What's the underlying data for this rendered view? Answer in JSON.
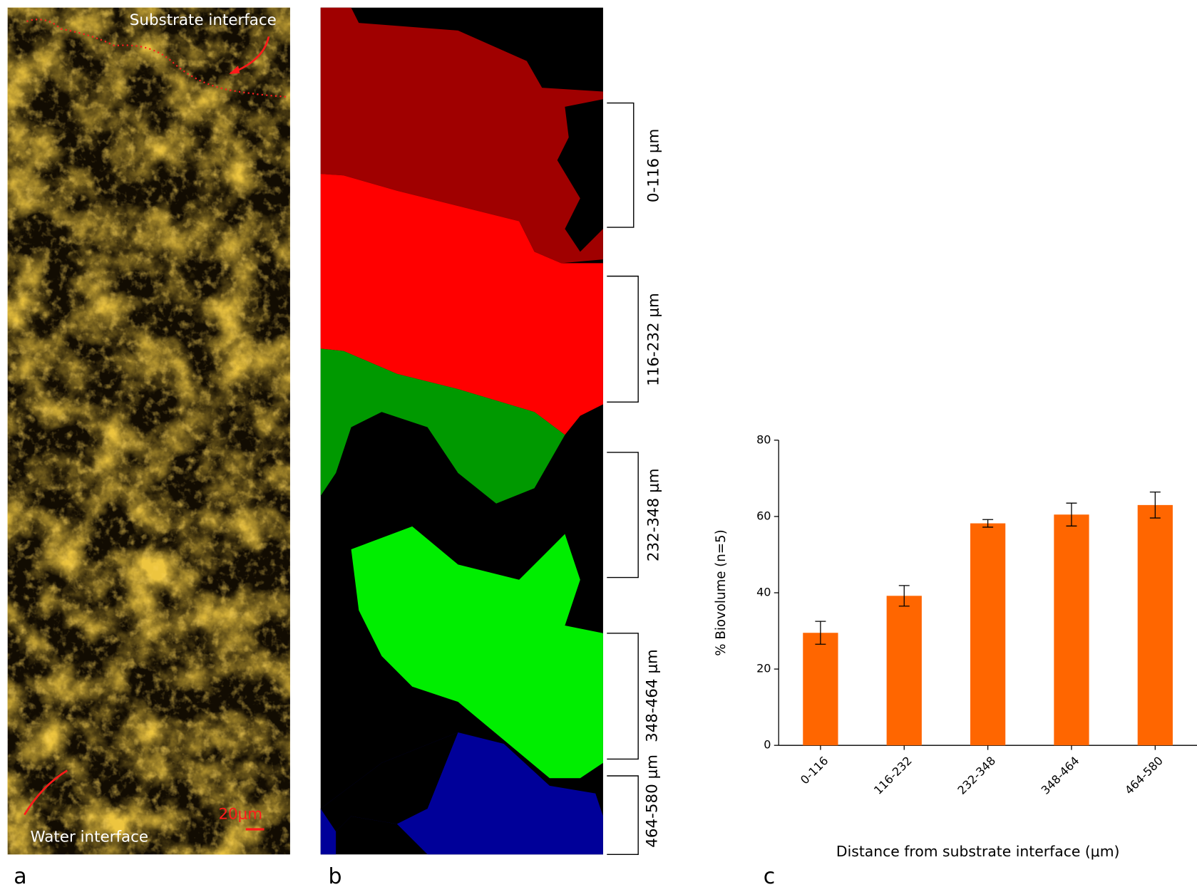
{
  "panel_a": {
    "label": "a",
    "top_annotation": "Substrate interface",
    "bottom_annotation": "Water interface",
    "scale_bar": "20μm"
  },
  "panel_b": {
    "label": "b",
    "bands": [
      "0-116 μm",
      "116-232 μm",
      "232-348 μm",
      "348-464 μm",
      "464-580 μm"
    ]
  },
  "chart_data": {
    "type": "bar",
    "panel_label": "c",
    "x_label": "Distance from substrate interface (μm)",
    "y_label": "% Biovolume (n=5)",
    "categories": [
      "0-116",
      "116-232",
      "232-348",
      "348-464",
      "464-580"
    ],
    "values": [
      29.5,
      39.2,
      58.2,
      60.5,
      63
    ],
    "errors": [
      3,
      2.7,
      1,
      3,
      3.4
    ],
    "color": "#ff6600",
    "ylim": [
      0,
      80
    ],
    "yticks": [
      0,
      20,
      40,
      60,
      80
    ],
    "grid": false
  }
}
